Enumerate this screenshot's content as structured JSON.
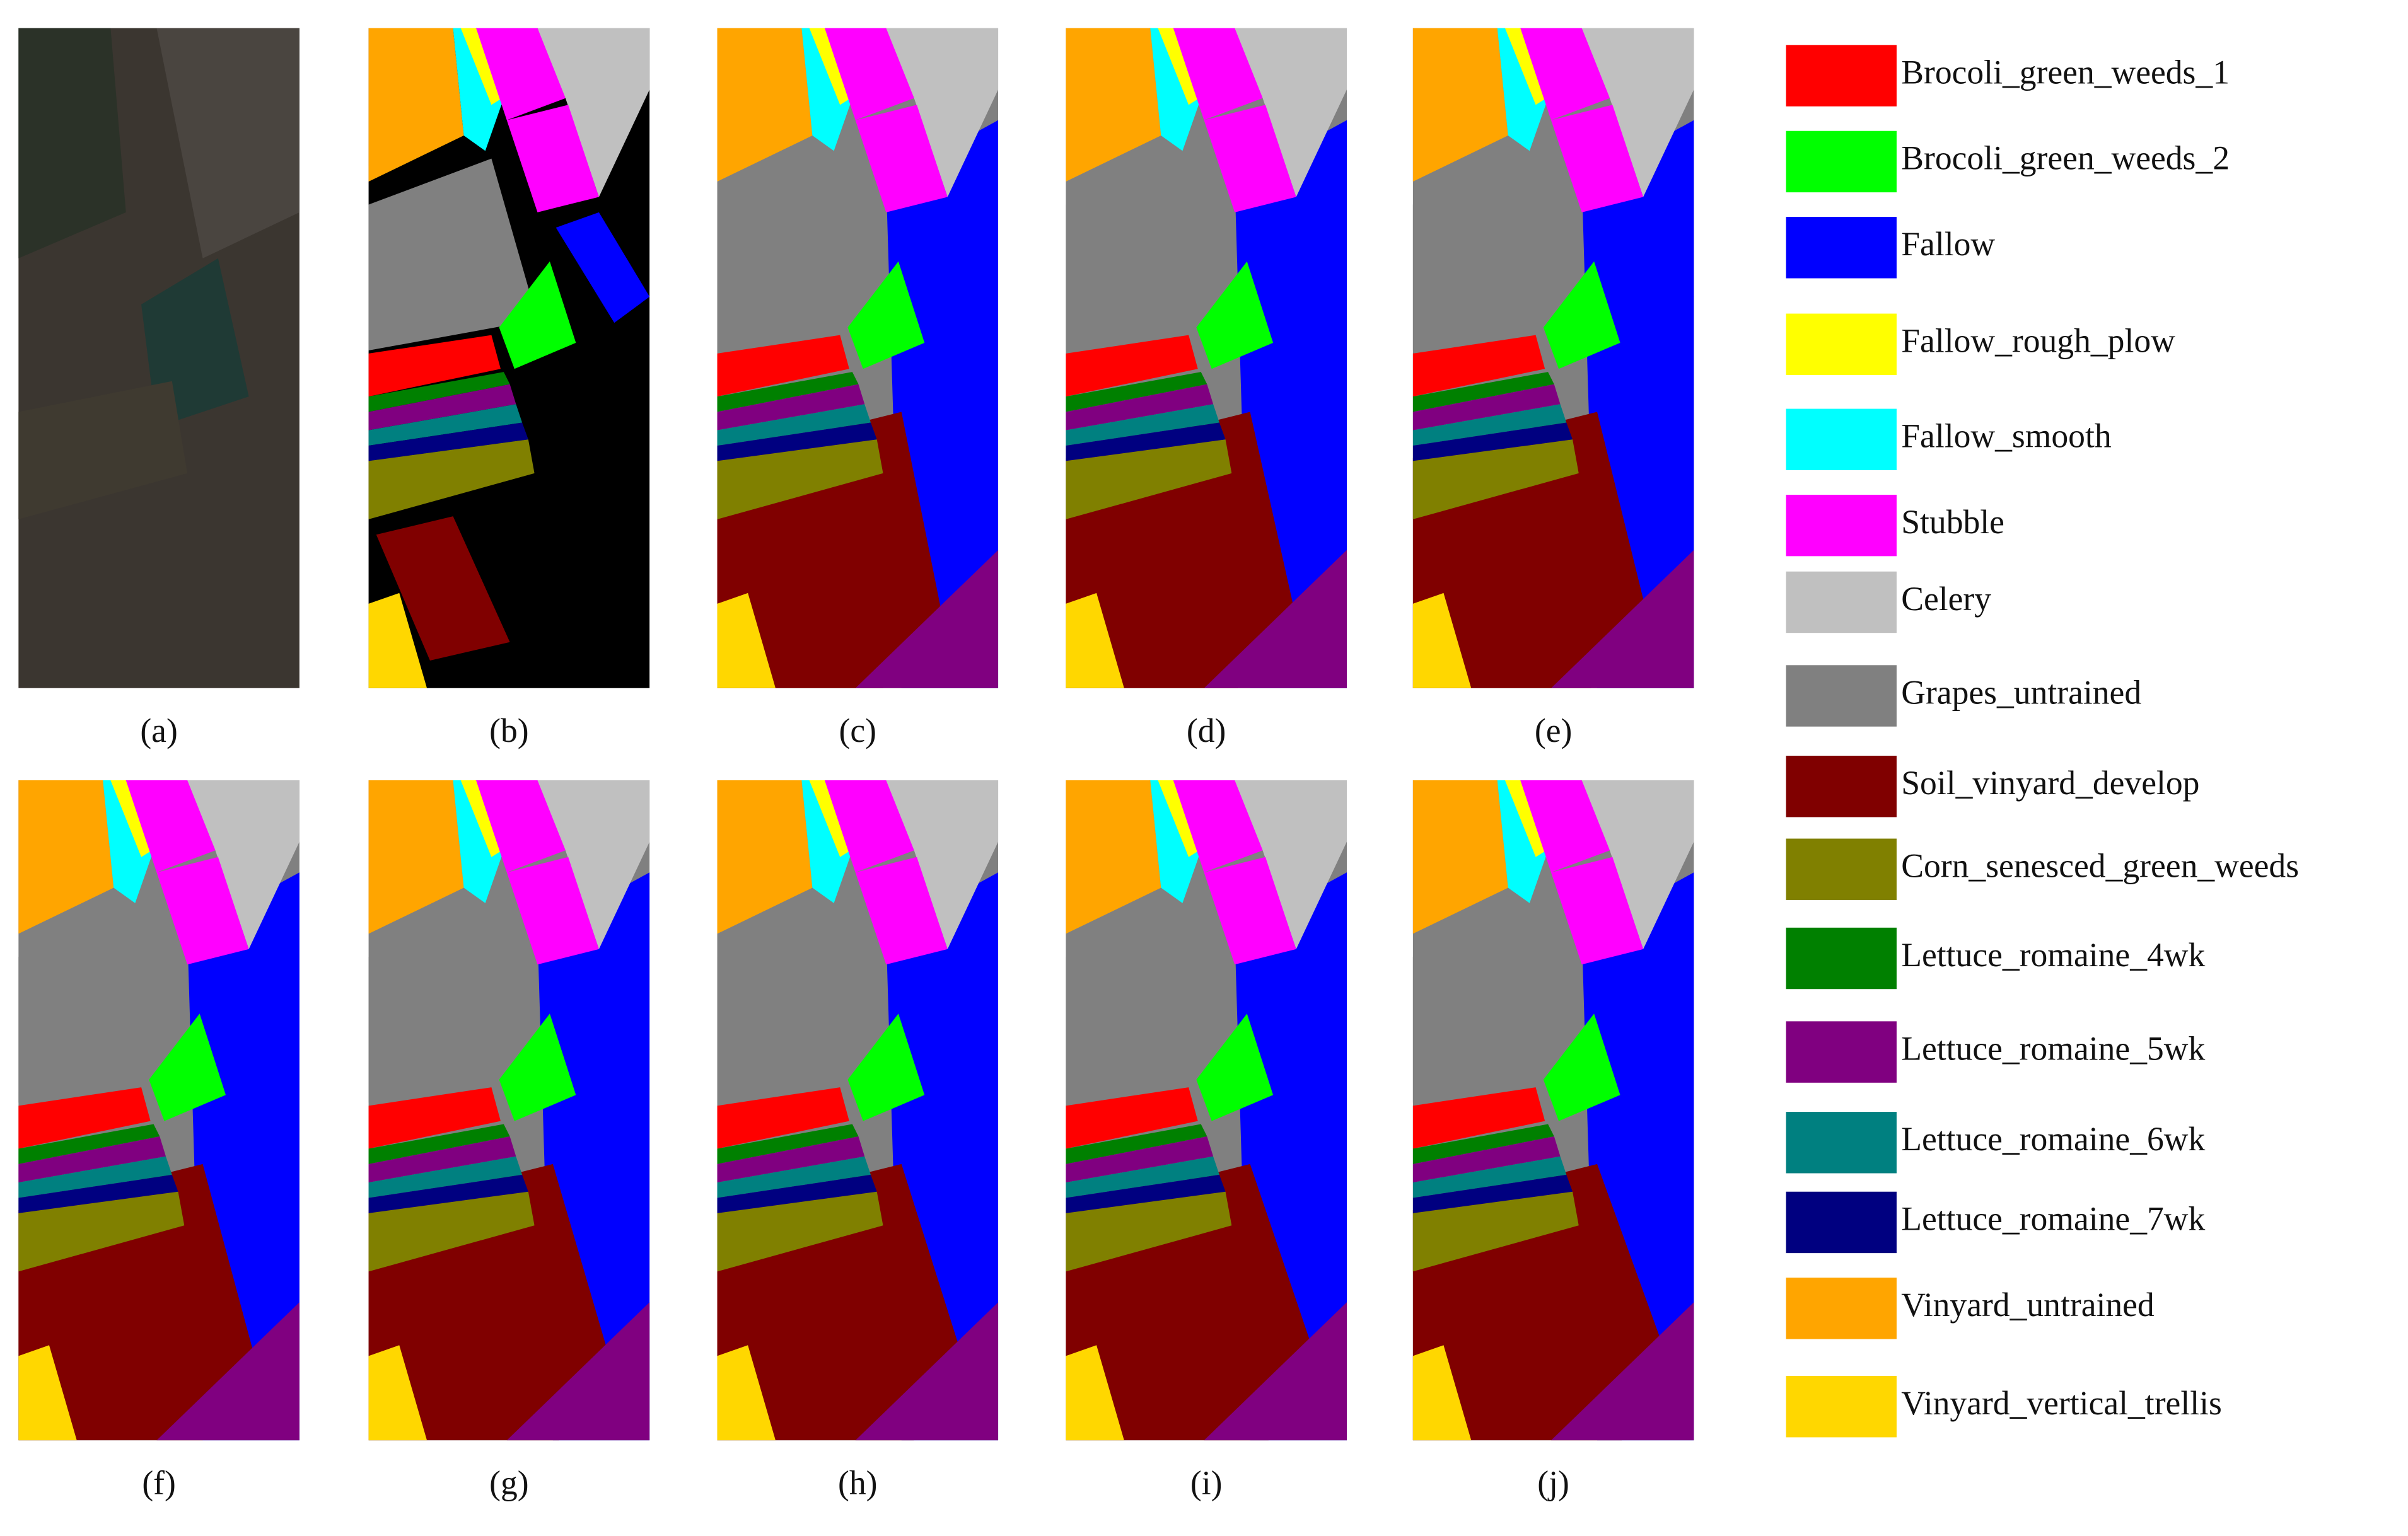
{
  "panels": [
    {
      "label": "(a)"
    },
    {
      "label": "(b)"
    },
    {
      "label": "(c)"
    },
    {
      "label": "(d)"
    },
    {
      "label": "(e)"
    },
    {
      "label": "(f)"
    },
    {
      "label": "(g)"
    },
    {
      "label": "(h)"
    },
    {
      "label": "(i)"
    },
    {
      "label": "(j)"
    }
  ],
  "legend": [
    {
      "name": "Brocoli_green_weeds_1",
      "color": "#ff0000"
    },
    {
      "name": "Brocoli_green_weeds_2",
      "color": "#00ff00"
    },
    {
      "name": "Fallow",
      "color": "#0000ff"
    },
    {
      "name": "Fallow_rough_plow",
      "color": "#ffff00"
    },
    {
      "name": "Fallow_smooth",
      "color": "#00ffff"
    },
    {
      "name": "Stubble",
      "color": "#ff00ff"
    },
    {
      "name": "Celery",
      "color": "#c0c0c0"
    },
    {
      "name": "Grapes_untrained",
      "color": "#808080"
    },
    {
      "name": "Soil_vinyard_develop",
      "color": "#800000"
    },
    {
      "name": "Corn_senesced_green_weeds",
      "color": "#808000"
    },
    {
      "name": "Lettuce_romaine_4wk",
      "color": "#008000"
    },
    {
      "name": "Lettuce_romaine_5wk",
      "color": "#800080"
    },
    {
      "name": "Lettuce_romaine_6wk",
      "color": "#008080"
    },
    {
      "name": "Lettuce_romaine_7wk",
      "color": "#000080"
    },
    {
      "name": "Vinyard_untrained",
      "color": "#ffa500"
    },
    {
      "name": "Vinyard_vertical_trellis",
      "color": "#ffd700"
    }
  ]
}
